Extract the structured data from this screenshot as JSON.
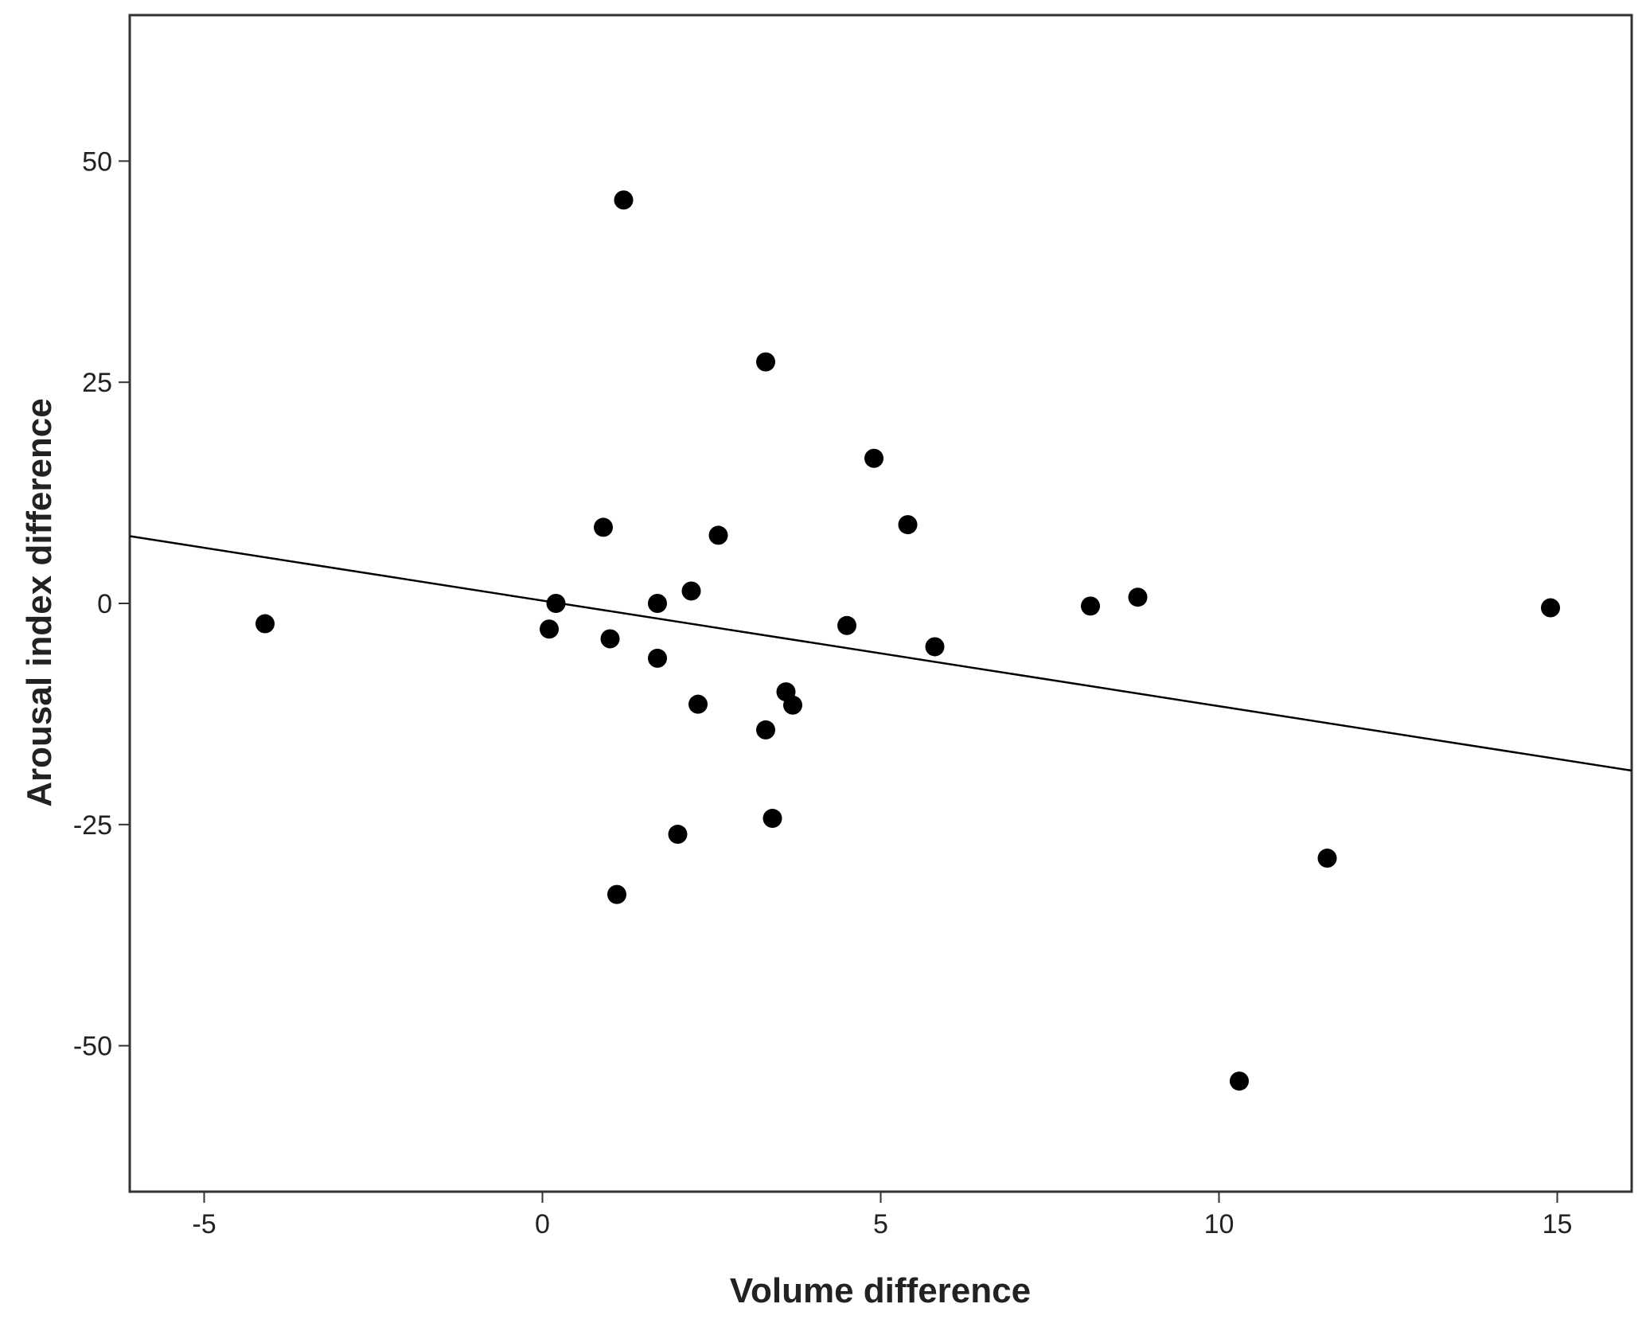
{
  "chart_data": {
    "type": "scatter",
    "title": "",
    "xlabel": "Volume difference",
    "ylabel": "Arousal index difference",
    "xlim": [
      -6.1,
      16.1
    ],
    "ylim": [
      -66.5,
      66.5
    ],
    "x_ticks": [
      -5,
      0,
      5,
      10,
      15
    ],
    "y_ticks": [
      -50,
      -25,
      0,
      25,
      50
    ],
    "grid": false,
    "legend": "none",
    "point_color": "#000000",
    "line_color": "#000000",
    "series": [
      {
        "points": [
          {
            "x": -4.1,
            "y": -2.3
          },
          {
            "x": 0.1,
            "y": -2.9
          },
          {
            "x": 0.2,
            "y": 0.0
          },
          {
            "x": 0.9,
            "y": 8.6
          },
          {
            "x": 1.0,
            "y": -4.0
          },
          {
            "x": 1.1,
            "y": -32.9
          },
          {
            "x": 1.2,
            "y": 45.6
          },
          {
            "x": 1.7,
            "y": 0.0
          },
          {
            "x": 1.7,
            "y": -6.2
          },
          {
            "x": 2.0,
            "y": -26.1
          },
          {
            "x": 2.2,
            "y": 1.4
          },
          {
            "x": 2.3,
            "y": -11.4
          },
          {
            "x": 2.6,
            "y": 7.7
          },
          {
            "x": 3.3,
            "y": 27.3
          },
          {
            "x": 3.3,
            "y": -14.3
          },
          {
            "x": 3.4,
            "y": -24.3
          },
          {
            "x": 3.6,
            "y": -10.0
          },
          {
            "x": 3.7,
            "y": -11.5
          },
          {
            "x": 4.5,
            "y": -2.5
          },
          {
            "x": 4.9,
            "y": 16.4
          },
          {
            "x": 5.4,
            "y": 8.9
          },
          {
            "x": 5.8,
            "y": -4.9
          },
          {
            "x": 8.1,
            "y": -0.3
          },
          {
            "x": 8.8,
            "y": 0.7
          },
          {
            "x": 10.3,
            "y": -54.0
          },
          {
            "x": 11.6,
            "y": -28.8
          },
          {
            "x": 14.9,
            "y": -0.5
          }
        ]
      }
    ],
    "fit_line": {
      "type": "linear",
      "points": [
        [
          -6.1,
          7.6
        ],
        [
          16.1,
          -18.9
        ]
      ]
    }
  }
}
